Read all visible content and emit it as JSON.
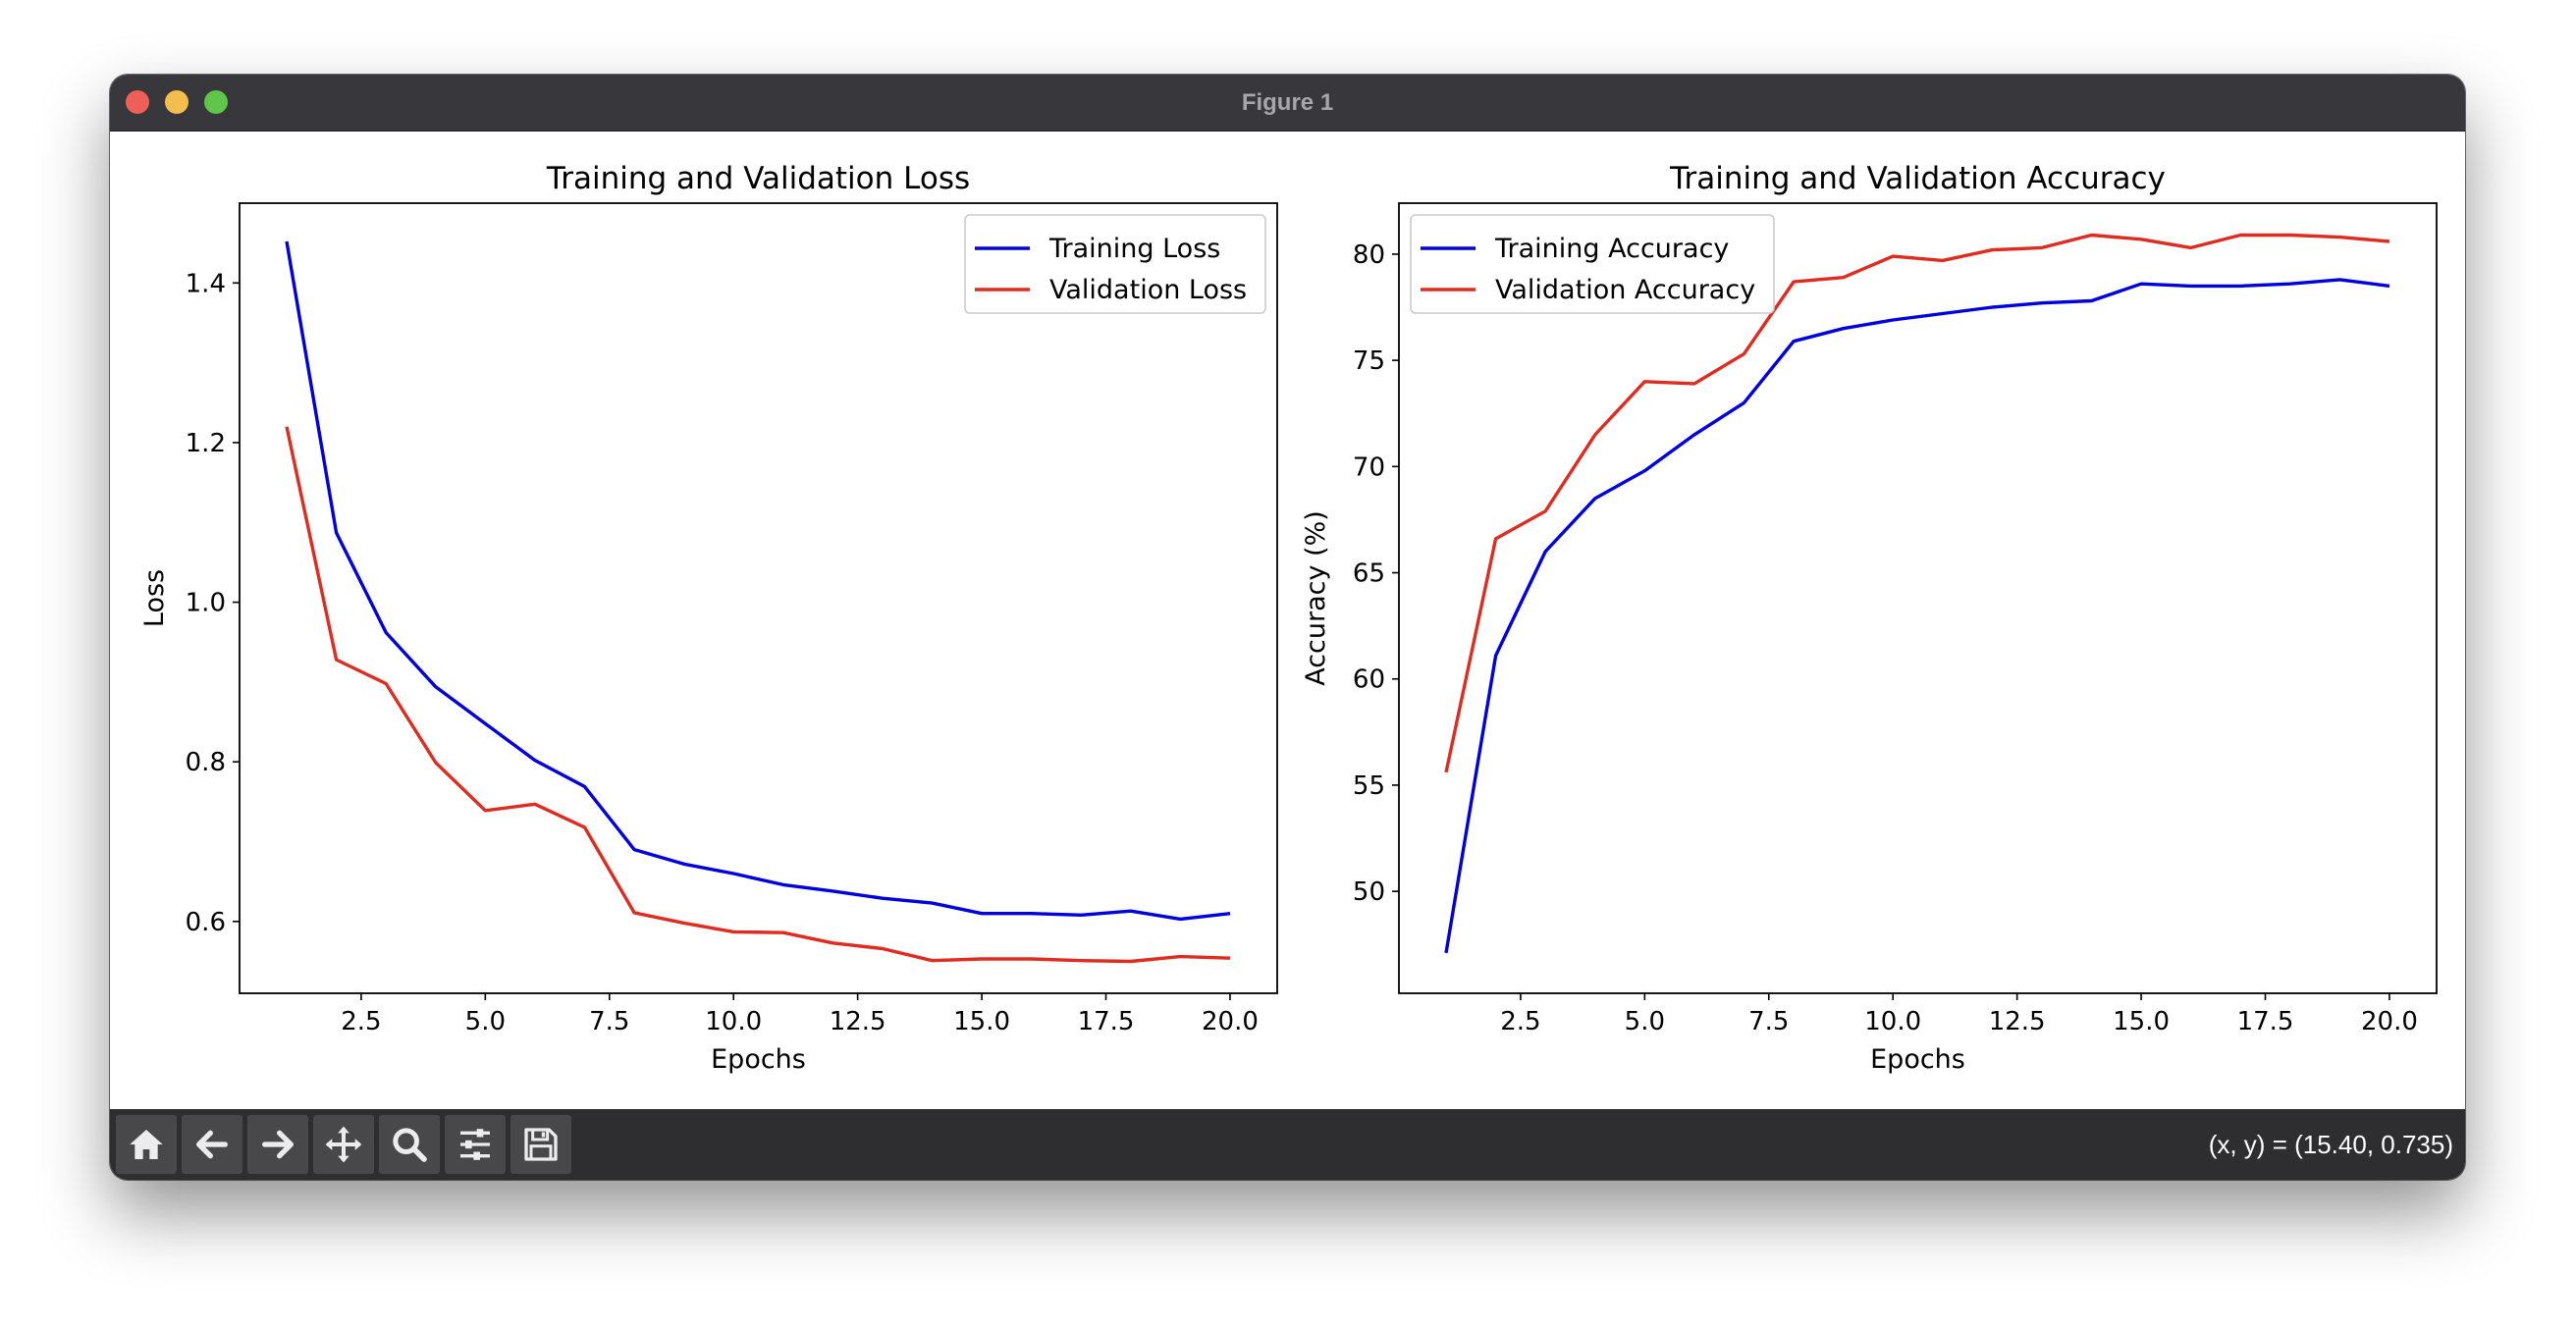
{
  "window": {
    "title": "Figure 1"
  },
  "toolbar": {
    "buttons": [
      {
        "name": "home-button",
        "icon": "home-icon"
      },
      {
        "name": "back-button",
        "icon": "arrow-left-icon"
      },
      {
        "name": "forward-button",
        "icon": "arrow-right-icon"
      },
      {
        "name": "pan-button",
        "icon": "move-icon"
      },
      {
        "name": "zoom-button",
        "icon": "magnifier-icon"
      },
      {
        "name": "configure-subplots-button",
        "icon": "sliders-icon"
      },
      {
        "name": "save-button",
        "icon": "floppy-disk-icon"
      }
    ],
    "coordinates": "(x, y) = (15.40, 0.735)"
  },
  "chart_data": [
    {
      "type": "line",
      "title": "Training and Validation Loss",
      "xlabel": "Epochs",
      "ylabel": "Loss",
      "xlim": [
        0.05,
        20.95
      ],
      "ylim": [
        0.51,
        1.5
      ],
      "xticks": [
        2.5,
        5.0,
        7.5,
        10.0,
        12.5,
        15.0,
        17.5,
        20.0
      ],
      "xtick_labels": [
        "2.5",
        "5.0",
        "7.5",
        "10.0",
        "12.5",
        "15.0",
        "17.5",
        "20.0"
      ],
      "yticks": [
        0.6,
        0.8,
        1.0,
        1.2,
        1.4
      ],
      "ytick_labels": [
        "0.6",
        "0.8",
        "1.0",
        "1.2",
        "1.4"
      ],
      "grid": false,
      "legend_position": "upper right",
      "x": [
        1,
        2,
        3,
        4,
        5,
        6,
        7,
        8,
        9,
        10,
        11,
        12,
        13,
        14,
        15,
        16,
        17,
        18,
        19,
        20
      ],
      "series": [
        {
          "name": "Training Loss",
          "color": "#0000e0",
          "values": [
            1.452,
            1.087,
            0.962,
            0.894,
            0.848,
            0.802,
            0.769,
            0.69,
            0.672,
            0.66,
            0.646,
            0.638,
            0.629,
            0.623,
            0.61,
            0.61,
            0.608,
            0.613,
            0.603,
            0.61
          ]
        },
        {
          "name": "Validation Loss",
          "color": "#e02c20",
          "values": [
            1.22,
            0.928,
            0.898,
            0.799,
            0.739,
            0.747,
            0.718,
            0.611,
            0.598,
            0.587,
            0.586,
            0.573,
            0.566,
            0.551,
            0.553,
            0.553,
            0.551,
            0.55,
            0.556,
            0.554
          ]
        }
      ]
    },
    {
      "type": "line",
      "title": "Training and Validation Accuracy",
      "xlabel": "Epochs",
      "ylabel": "Accuracy (%)",
      "xlim": [
        0.05,
        20.95
      ],
      "ylim": [
        45.2,
        82.4
      ],
      "xticks": [
        2.5,
        5.0,
        7.5,
        10.0,
        12.5,
        15.0,
        17.5,
        20.0
      ],
      "xtick_labels": [
        "2.5",
        "5.0",
        "7.5",
        "10.0",
        "12.5",
        "15.0",
        "17.5",
        "20.0"
      ],
      "yticks": [
        50,
        55,
        60,
        65,
        70,
        75,
        80
      ],
      "ytick_labels": [
        "50",
        "55",
        "60",
        "65",
        "70",
        "75",
        "80"
      ],
      "grid": false,
      "legend_position": "upper left",
      "x": [
        1,
        2,
        3,
        4,
        5,
        6,
        7,
        8,
        9,
        10,
        11,
        12,
        13,
        14,
        15,
        16,
        17,
        18,
        19,
        20
      ],
      "series": [
        {
          "name": "Training Accuracy",
          "color": "#0000e0",
          "values": [
            47.1,
            61.1,
            66.0,
            68.5,
            69.8,
            71.5,
            73.0,
            75.9,
            76.5,
            76.9,
            77.2,
            77.5,
            77.7,
            77.8,
            78.6,
            78.5,
            78.5,
            78.6,
            78.8,
            78.5
          ]
        },
        {
          "name": "Validation Accuracy",
          "color": "#e02c20",
          "values": [
            55.6,
            66.6,
            67.9,
            71.5,
            74.0,
            73.9,
            75.3,
            78.7,
            78.9,
            79.9,
            79.7,
            80.2,
            80.3,
            80.9,
            80.7,
            80.3,
            80.9,
            80.9,
            80.8,
            80.6
          ]
        }
      ]
    }
  ]
}
